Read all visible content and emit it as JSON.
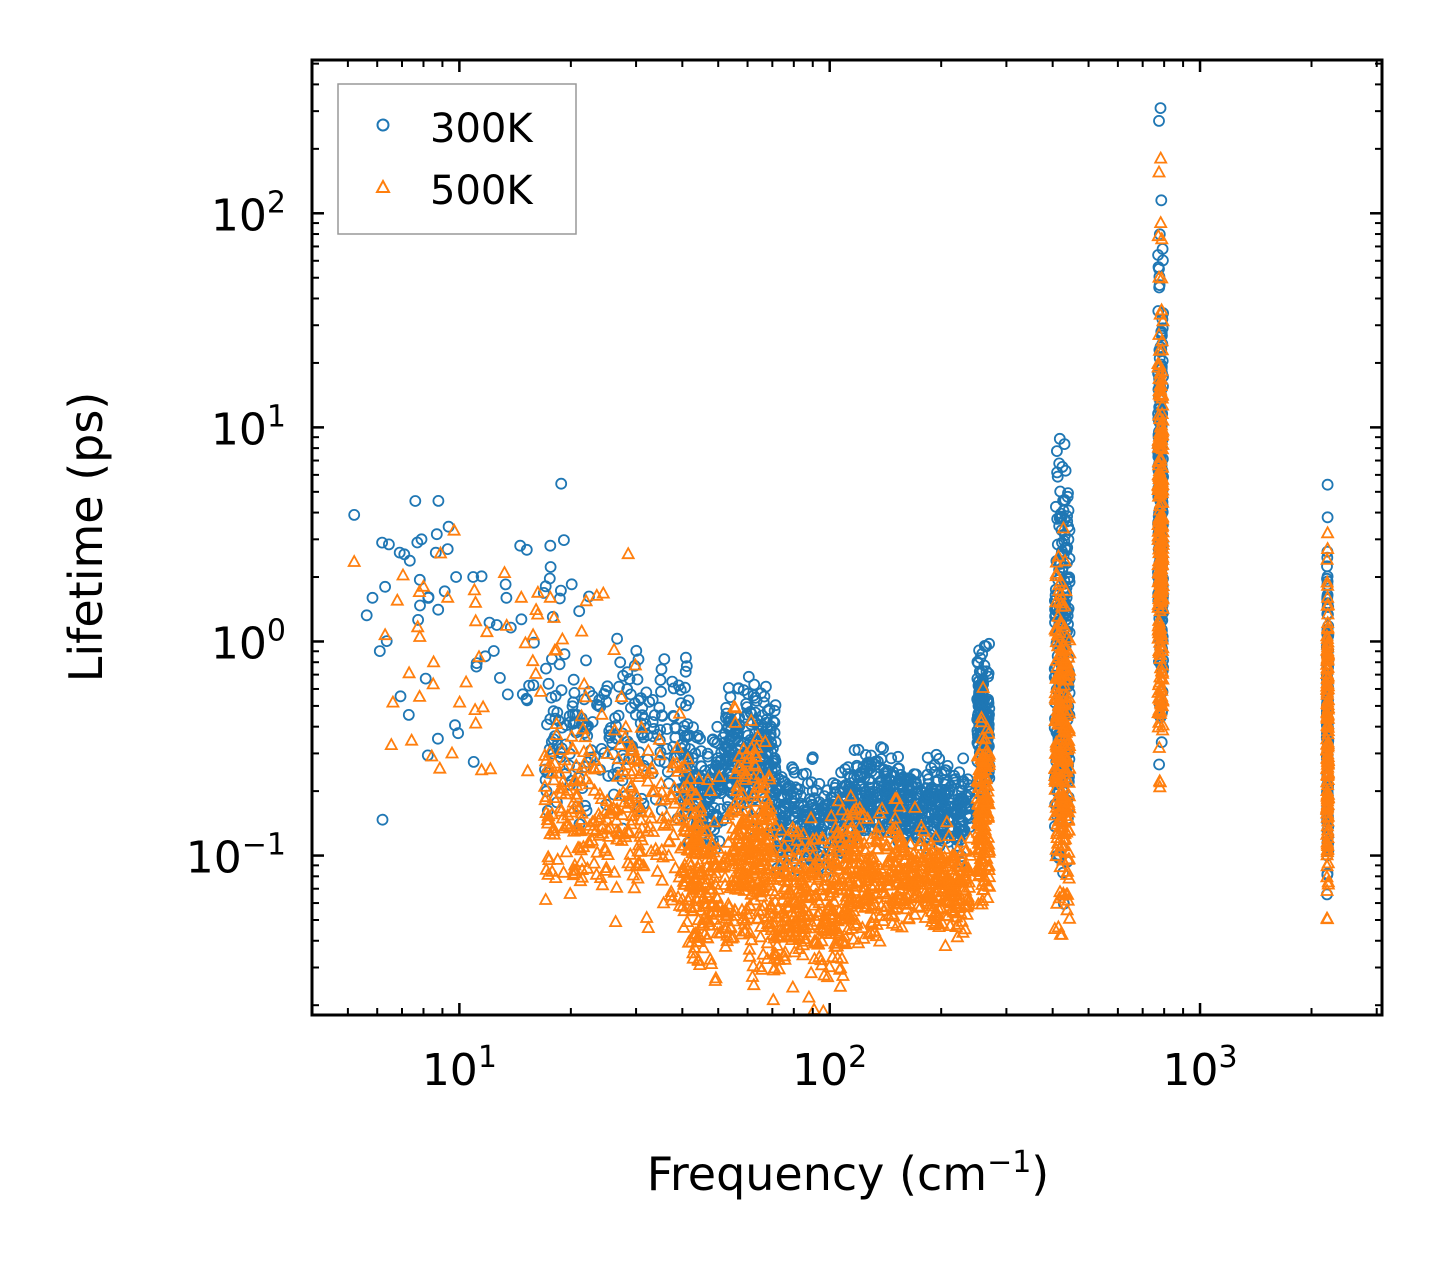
{
  "chart_data": {
    "type": "scatter",
    "xlabel": "Frequency (cm",
    "xlabel_sup": "−1",
    "xlabel_end": ")",
    "ylabel": "Lifetime (ps)",
    "xscale": "log",
    "yscale": "log",
    "xlim": [
      4,
      3100
    ],
    "ylim": [
      0.018,
      520
    ],
    "grid": false,
    "legend_position": "top-left",
    "x_ticks": [
      {
        "base": "10",
        "exp": "1",
        "value": 10
      },
      {
        "base": "10",
        "exp": "2",
        "value": 100
      },
      {
        "base": "10",
        "exp": "3",
        "value": 1000
      }
    ],
    "y_ticks": [
      {
        "base": "10",
        "exp": "−1",
        "value": 0.1
      },
      {
        "base": "10",
        "exp": "0",
        "value": 1
      },
      {
        "base": "10",
        "exp": "1",
        "value": 10
      },
      {
        "base": "10",
        "exp": "2",
        "value": 100
      }
    ],
    "series": [
      {
        "name": "300K",
        "marker": "circle",
        "color": "#1f77b4",
        "clusters": [
          {
            "x_range": [
              5.2,
              32
            ],
            "y_center": 0.9,
            "y_spread": 0.35,
            "n": 70
          },
          {
            "x_range": [
              17,
              42
            ],
            "y_center": 0.38,
            "y_spread": 0.18,
            "n": 200
          },
          {
            "x_range": [
              40,
              52
            ],
            "y_center": 0.21,
            "y_spread": 0.12,
            "n": 150
          },
          {
            "x_range": [
              52,
              72
            ],
            "y_center": 0.28,
            "y_spread": 0.15,
            "n": 250
          },
          {
            "x_range": [
              72,
              110
            ],
            "y_center": 0.14,
            "y_spread": 0.12,
            "n": 250
          },
          {
            "x_range": [
              110,
              160
            ],
            "y_center": 0.19,
            "y_spread": 0.1,
            "n": 250
          },
          {
            "x_range": [
              160,
              240
            ],
            "y_center": 0.17,
            "y_spread": 0.1,
            "n": 250
          },
          {
            "x_range": [
              250,
              270
            ],
            "y_center": 0.42,
            "y_spread": 0.15,
            "n": 150
          },
          {
            "x_range": [
              405,
              445
            ],
            "y_center": 0.9,
            "y_spread": 0.45,
            "n": 250
          },
          {
            "x_range": [
              770,
              795
            ],
            "y_center": 4.0,
            "y_spread": 0.5,
            "n": 250
          },
          {
            "x_range": [
              2200,
              2220
            ],
            "y_center": 0.45,
            "y_spread": 0.35,
            "n": 150
          }
        ],
        "highlights": [
          {
            "x": 5.2,
            "y": 3.9
          },
          {
            "x": 6.3,
            "y": 1.8
          },
          {
            "x": 6.9,
            "y": 2.6
          },
          {
            "x": 7.7,
            "y": 2.9
          },
          {
            "x": 7.9,
            "y": 3.0
          },
          {
            "x": 9.3,
            "y": 2.7
          },
          {
            "x": 9.8,
            "y": 2.0
          },
          {
            "x": 10.9,
            "y": 2.0
          },
          {
            "x": 14.6,
            "y": 2.8
          },
          {
            "x": 17.6,
            "y": 2.8
          },
          {
            "x": 20.1,
            "y": 1.85
          },
          {
            "x": 13.4,
            "y": 1.6
          },
          {
            "x": 420,
            "y": 2.3
          },
          {
            "x": 420,
            "y": 2.0
          },
          {
            "x": 775,
            "y": 270
          },
          {
            "x": 782,
            "y": 310
          },
          {
            "x": 786,
            "y": 115
          },
          {
            "x": 775,
            "y": 55
          },
          {
            "x": 776,
            "y": 45
          },
          {
            "x": 786,
            "y": 28
          },
          {
            "x": 2210,
            "y": 5.4
          },
          {
            "x": 2210,
            "y": 3.8
          },
          {
            "x": 2210,
            "y": 1.65
          },
          {
            "x": 2210,
            "y": 1.45
          }
        ]
      },
      {
        "name": "500K",
        "marker": "triangle",
        "color": "#ff7f0e",
        "clusters": [
          {
            "x_range": [
              6.3,
              30
            ],
            "y_center": 0.7,
            "y_spread": 0.35,
            "n": 60
          },
          {
            "x_range": [
              17,
              45
            ],
            "y_center": 0.15,
            "y_spread": 0.2,
            "n": 300
          },
          {
            "x_range": [
              40,
              55
            ],
            "y_center": 0.07,
            "y_spread": 0.2,
            "n": 200
          },
          {
            "x_range": [
              55,
              70
            ],
            "y_center": 0.11,
            "y_spread": 0.25,
            "n": 250
          },
          {
            "x_range": [
              70,
              110
            ],
            "y_center": 0.06,
            "y_spread": 0.18,
            "n": 300
          },
          {
            "x_range": [
              110,
              160
            ],
            "y_center": 0.08,
            "y_spread": 0.15,
            "n": 250
          },
          {
            "x_range": [
              160,
              240
            ],
            "y_center": 0.075,
            "y_spread": 0.12,
            "n": 250
          },
          {
            "x_range": [
              250,
              270
            ],
            "y_center": 0.16,
            "y_spread": 0.2,
            "n": 150
          },
          {
            "x_range": [
              405,
              445
            ],
            "y_center": 0.35,
            "y_spread": 0.4,
            "n": 250
          },
          {
            "x_range": [
              770,
              795
            ],
            "y_center": 3.5,
            "y_spread": 0.5,
            "n": 250
          },
          {
            "x_range": [
              2200,
              2220
            ],
            "y_center": 0.3,
            "y_spread": 0.35,
            "n": 150
          }
        ],
        "highlights": [
          {
            "x": 5.2,
            "y": 2.35
          },
          {
            "x": 6.3,
            "y": 1.07
          },
          {
            "x": 6.8,
            "y": 1.55
          },
          {
            "x": 7.8,
            "y": 1.7
          },
          {
            "x": 8.0,
            "y": 1.8
          },
          {
            "x": 8.5,
            "y": 0.63
          },
          {
            "x": 9.3,
            "y": 1.6
          },
          {
            "x": 17.6,
            "y": 1.6
          },
          {
            "x": 14.7,
            "y": 1.6
          },
          {
            "x": 775,
            "y": 155
          },
          {
            "x": 783,
            "y": 180
          },
          {
            "x": 783,
            "y": 90
          },
          {
            "x": 775,
            "y": 50
          },
          {
            "x": 775,
            "y": 27
          },
          {
            "x": 2210,
            "y": 3.2
          },
          {
            "x": 2210,
            "y": 2.7
          },
          {
            "x": 2210,
            "y": 1.6
          }
        ]
      }
    ]
  }
}
